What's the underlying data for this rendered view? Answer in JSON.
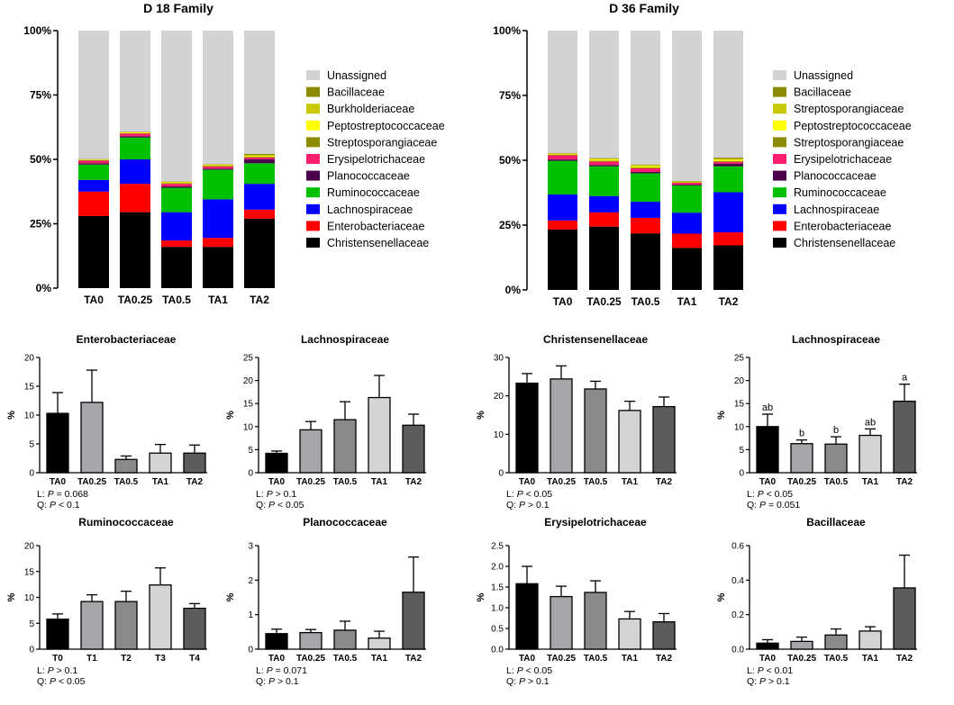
{
  "colors": {
    "Unassigned": "#d3d3d3",
    "Bacillaceae": "#8b8a00",
    "Burkholderiaceae": "#c8c800",
    "Peptostreptococcaceae": "#ffff00",
    "Streptosporangiaceae": "#8b8a00",
    "Streptosporangiaceae_b": "#c8c800",
    "Erysipelotrichaceae": "#ff1d6e",
    "Planococcaceae": "#4b004b",
    "Ruminococcaceae": "#00c000",
    "Lachnospiraceae": "#0000ff",
    "Enterobacteriaceae": "#ff0000",
    "Christensenellaceae": "#000000",
    "bar_shades": [
      "#000000",
      "#a6a6aa",
      "#8a8a8a",
      "#d4d4d4",
      "#5c5c5c"
    ]
  },
  "chart_data": [
    {
      "id": "d18",
      "type": "bar",
      "stacked": true,
      "title": "D 18 Family",
      "categories": [
        "TA0",
        "TA0.25",
        "TA0.5",
        "TA1",
        "TA2"
      ],
      "yticks": [
        "0%",
        "25%",
        "50%",
        "75%",
        "100%"
      ],
      "ylim": [
        0,
        100
      ],
      "legend": [
        {
          "label": "Unassigned",
          "color_key": "Unassigned"
        },
        {
          "label": "Bacillaceae",
          "color_key": "Bacillaceae"
        },
        {
          "label": "Burkholderiaceae",
          "color_key": "Burkholderiaceae"
        },
        {
          "label": "Peptostreptococcaceae",
          "color_key": "Peptostreptococcaceae"
        },
        {
          "label": "Streptosporangiaceae",
          "color_key": "Streptosporangiaceae"
        },
        {
          "label": "Erysipelotrichaceae",
          "color_key": "Erysipelotrichaceae"
        },
        {
          "label": "Planococcaceae",
          "color_key": "Planococcaceae"
        },
        {
          "label": "Ruminococcaceae",
          "color_key": "Ruminococcaceae"
        },
        {
          "label": "Lachnospiraceae",
          "color_key": "Lachnospiraceae"
        },
        {
          "label": "Enterobacteriaceae",
          "color_key": "Enterobacteriaceae"
        },
        {
          "label": "Christensenellaceae",
          "color_key": "Christensenellaceae"
        }
      ],
      "series": [
        {
          "name": "Christensenellaceae",
          "color_key": "Christensenellaceae",
          "values": [
            28,
            29.5,
            16,
            16,
            27
          ]
        },
        {
          "name": "Enterobacteriaceae",
          "color_key": "Enterobacteriaceae",
          "values": [
            9.5,
            11,
            2.5,
            3.5,
            3.5
          ]
        },
        {
          "name": "Lachnospiraceae",
          "color_key": "Lachnospiraceae",
          "values": [
            4.5,
            9.5,
            11,
            15,
            10
          ]
        },
        {
          "name": "Ruminococcaceae",
          "color_key": "Ruminococcaceae",
          "values": [
            6,
            8.5,
            9.5,
            11.5,
            8
          ]
        },
        {
          "name": "Planococcaceae",
          "color_key": "Planococcaceae",
          "values": [
            0.5,
            0.5,
            0.5,
            0.4,
            1.6
          ]
        },
        {
          "name": "Erysipelotrichaceae",
          "color_key": "Erysipelotrichaceae",
          "values": [
            1,
            1,
            1,
            0.8,
            0.6
          ]
        },
        {
          "name": "Streptosporangiaceae",
          "color_key": "Streptosporangiaceae",
          "values": [
            0.2,
            0.2,
            0.3,
            0.3,
            0.3
          ]
        },
        {
          "name": "Peptostreptococcaceae",
          "color_key": "Peptostreptococcaceae",
          "values": [
            0.2,
            0.3,
            0.3,
            0.3,
            0.4
          ]
        },
        {
          "name": "Burkholderiaceae",
          "color_key": "Burkholderiaceae",
          "values": [
            0.1,
            0.1,
            0.2,
            0.2,
            0.3
          ]
        },
        {
          "name": "Bacillaceae",
          "color_key": "Bacillaceae",
          "values": [
            0.1,
            0.1,
            0.1,
            0.1,
            0.4
          ]
        }
      ]
    },
    {
      "id": "d36",
      "type": "bar",
      "stacked": true,
      "title": "D 36 Family",
      "categories": [
        "TA0",
        "TA0.25",
        "TA0.5",
        "TA1",
        "TA2"
      ],
      "yticks": [
        "0%",
        "25%",
        "50%",
        "75%",
        "100%"
      ],
      "ylim": [
        0,
        100
      ],
      "legend": [
        {
          "label": "Unassigned",
          "color_key": "Unassigned"
        },
        {
          "label": "Bacillaceae",
          "color_key": "Bacillaceae"
        },
        {
          "label": "Streptosporangiaceae",
          "color_key": "Streptosporangiaceae_b"
        },
        {
          "label": "Peptostreptococcaceae",
          "color_key": "Peptostreptococcaceae"
        },
        {
          "label": "Streptosporangiaceae",
          "color_key": "Streptosporangiaceae"
        },
        {
          "label": "Erysipelotrichaceae",
          "color_key": "Erysipelotrichaceae"
        },
        {
          "label": "Planococcaceae",
          "color_key": "Planococcaceae"
        },
        {
          "label": "Ruminococcaceae",
          "color_key": "Ruminococcaceae"
        },
        {
          "label": "Lachnospiraceae",
          "color_key": "Lachnospiraceae"
        },
        {
          "label": "Enterobacteriaceae",
          "color_key": "Enterobacteriaceae"
        },
        {
          "label": "Christensenellaceae",
          "color_key": "Christensenellaceae"
        }
      ],
      "series": [
        {
          "name": "Christensenellaceae",
          "color_key": "Christensenellaceae",
          "values": [
            23.3,
            24.4,
            21.8,
            16.2,
            17.2
          ]
        },
        {
          "name": "Enterobacteriaceae",
          "color_key": "Enterobacteriaceae",
          "values": [
            3.5,
            5.5,
            6,
            5.5,
            5
          ]
        },
        {
          "name": "Lachnospiraceae",
          "color_key": "Lachnospiraceae",
          "values": [
            10,
            6.3,
            6.2,
            8.1,
            15.5
          ]
        },
        {
          "name": "Ruminococcaceae",
          "color_key": "Ruminococcaceae",
          "values": [
            13,
            11.5,
            11,
            10.5,
            10
          ]
        },
        {
          "name": "Planococcaceae",
          "color_key": "Planococcaceae",
          "values": [
            0.5,
            0.5,
            0.5,
            0.3,
            1
          ]
        },
        {
          "name": "Erysipelotrichaceae",
          "color_key": "Erysipelotrichaceae",
          "values": [
            1.6,
            1.3,
            1.4,
            0.7,
            0.7
          ]
        },
        {
          "name": "Streptosporangiaceae",
          "color_key": "Streptosporangiaceae",
          "values": [
            0.3,
            0.3,
            0.3,
            0.2,
            0.3
          ]
        },
        {
          "name": "Peptostreptococcaceae",
          "color_key": "Peptostreptococcaceae",
          "values": [
            0.3,
            0.5,
            0.5,
            0.2,
            0.5
          ]
        },
        {
          "name": "Streptosporangiaceae",
          "color_key": "Streptosporangiaceae_b",
          "values": [
            0.2,
            0.4,
            0.5,
            0.2,
            0.4
          ]
        },
        {
          "name": "Bacillaceae",
          "color_key": "Bacillaceae",
          "values": [
            0.1,
            0.1,
            0.1,
            0.1,
            0.4
          ]
        }
      ]
    },
    {
      "id": "enterobacteriaceae",
      "type": "bar",
      "title": "Enterobacteriaceae",
      "ylabel": "%",
      "ymax": 20,
      "ytick_step": 5,
      "categories": [
        "TA0",
        "TA0.25",
        "TA0.5",
        "TA1",
        "TA2"
      ],
      "values": [
        10.3,
        12.2,
        2.3,
        3.4,
        3.4
      ],
      "errors": [
        3.6,
        5.6,
        0.6,
        1.5,
        1.4
      ],
      "stats": [
        {
          "prefix": "L: ",
          "p": "P",
          "rest": " = 0.068"
        },
        {
          "prefix": "Q: ",
          "p": "P",
          "rest": " < 0.1"
        }
      ]
    },
    {
      "id": "lachnospiraceae-d18",
      "type": "bar",
      "title": "Lachnospiraceae",
      "ylabel": "%",
      "ymax": 25,
      "ytick_step": 5,
      "categories": [
        "TA0",
        "TA0.25",
        "TA0.5",
        "TA1",
        "TA2"
      ],
      "values": [
        4.2,
        9.3,
        11.5,
        16.3,
        10.3
      ],
      "errors": [
        0.5,
        1.8,
        3.9,
        4.8,
        2.4
      ],
      "stats": [
        {
          "prefix": "L: ",
          "p": "P",
          "rest": " > 0.1"
        },
        {
          "prefix": "Q: ",
          "p": "P",
          "rest": " < 0.05"
        }
      ]
    },
    {
      "id": "christensenellaceae",
      "type": "bar",
      "title": "Christensenellaceae",
      "ylabel": "%",
      "ymax": 30,
      "ytick_step": 10,
      "categories": [
        "TA0",
        "TA0.25",
        "TA0.5",
        "TA1",
        "TA2"
      ],
      "values": [
        23.3,
        24.4,
        21.8,
        16.2,
        17.2
      ],
      "errors": [
        2.5,
        3.4,
        2.0,
        2.4,
        2.5
      ],
      "stats": [
        {
          "prefix": "L: ",
          "p": "P",
          "rest": " < 0.05"
        },
        {
          "prefix": "Q: ",
          "p": "P",
          "rest": " > 0.1"
        }
      ]
    },
    {
      "id": "lachnospiraceae-d36",
      "type": "bar",
      "title": "Lachnospiraceae",
      "ylabel": "%",
      "ymax": 25,
      "ytick_step": 5,
      "categories": [
        "TA0",
        "TA0.25",
        "TA0.5",
        "TA1",
        "TA2"
      ],
      "values": [
        10.0,
        6.3,
        6.2,
        8.1,
        15.5
      ],
      "errors": [
        2.7,
        0.8,
        1.6,
        1.4,
        3.7
      ],
      "letters": [
        "ab",
        "b",
        "b",
        "ab",
        "a"
      ],
      "stats": [
        {
          "prefix": "L: ",
          "p": "P",
          "rest": " < 0.05"
        },
        {
          "prefix": "Q: ",
          "p": "P",
          "rest": " = 0.051"
        }
      ]
    },
    {
      "id": "ruminococcaceae",
      "type": "bar",
      "title": "Ruminococcaceae",
      "ylabel": "%",
      "ymax": 20,
      "ytick_step": 5,
      "categories": [
        "T0",
        "T1",
        "T2",
        "T3",
        "T4"
      ],
      "values": [
        5.8,
        9.2,
        9.2,
        12.4,
        7.9
      ],
      "errors": [
        1.0,
        1.3,
        2.0,
        3.3,
        0.9
      ],
      "stats": [
        {
          "prefix": "L: ",
          "p": "P",
          "rest": " > 0.1"
        },
        {
          "prefix": "Q: ",
          "p": "P",
          "rest": " < 0.05"
        }
      ]
    },
    {
      "id": "planococcaceae",
      "type": "bar",
      "title": "Planococcaceae",
      "ylabel": "%",
      "ymax": 3,
      "ytick_step": 1,
      "categories": [
        "TA0",
        "TA0.25",
        "TA0.5",
        "TA1",
        "TA2"
      ],
      "values": [
        0.45,
        0.48,
        0.55,
        0.32,
        1.65
      ],
      "errors": [
        0.13,
        0.09,
        0.26,
        0.2,
        1.02
      ],
      "stats": [
        {
          "prefix": "L: ",
          "p": "P",
          "rest": " = 0.071"
        },
        {
          "prefix": "Q: ",
          "p": "P",
          "rest": " > 0.1"
        }
      ]
    },
    {
      "id": "erysipelotrichaceae",
      "type": "bar",
      "title": "Erysipelotrichaceae",
      "ylabel": "%",
      "ymax": 2.5,
      "ytick_step": 0.5,
      "decimals": 1,
      "categories": [
        "TA0",
        "TA0.25",
        "TA0.5",
        "TA1",
        "TA2"
      ],
      "values": [
        1.58,
        1.27,
        1.37,
        0.73,
        0.66
      ],
      "errors": [
        0.42,
        0.25,
        0.28,
        0.18,
        0.2
      ],
      "stats": [
        {
          "prefix": "L: ",
          "p": "P",
          "rest": " < 0.05"
        },
        {
          "prefix": "Q: ",
          "p": "P",
          "rest": " > 0.1"
        }
      ]
    },
    {
      "id": "bacillaceae",
      "type": "bar",
      "title": "Bacillaceae",
      "ylabel": "%",
      "ymax": 0.6,
      "ytick_step": 0.2,
      "decimals": 1,
      "categories": [
        "TA0",
        "TA0.25",
        "TA0.5",
        "TA1",
        "TA2"
      ],
      "values": [
        0.035,
        0.045,
        0.082,
        0.105,
        0.355
      ],
      "errors": [
        0.02,
        0.025,
        0.035,
        0.025,
        0.19
      ],
      "stats": [
        {
          "prefix": "L: ",
          "p": "P",
          "rest": " < 0.01"
        },
        {
          "prefix": "Q: ",
          "p": "P",
          "rest": " > 0.1"
        }
      ]
    }
  ]
}
